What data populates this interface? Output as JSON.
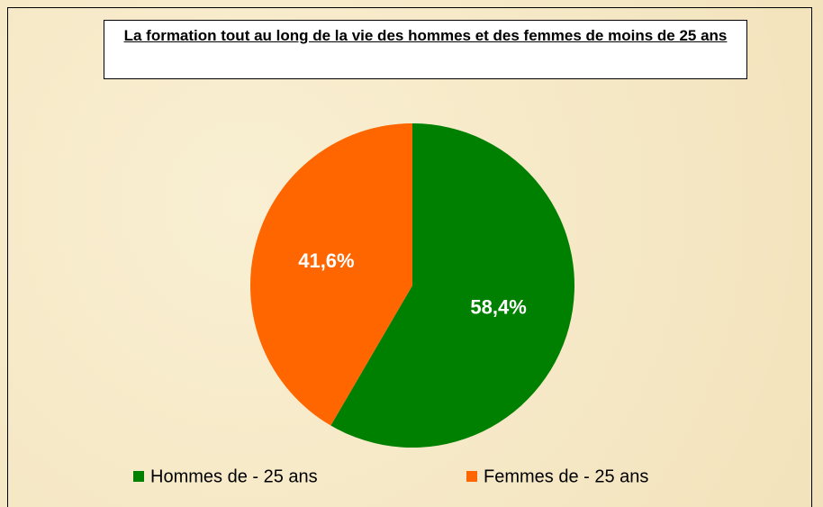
{
  "chart_data": {
    "type": "pie",
    "title": "La formation tout au long de la vie des hommes et des femmes de moins de 25 ans",
    "categories": [
      "Hommes de - 25 ans",
      "Femmes de - 25 ans"
    ],
    "values": [
      58.4,
      41.6
    ],
    "value_labels": [
      "58,4%",
      "41,6%"
    ],
    "colors": [
      "#008000",
      "#ff6600"
    ]
  }
}
